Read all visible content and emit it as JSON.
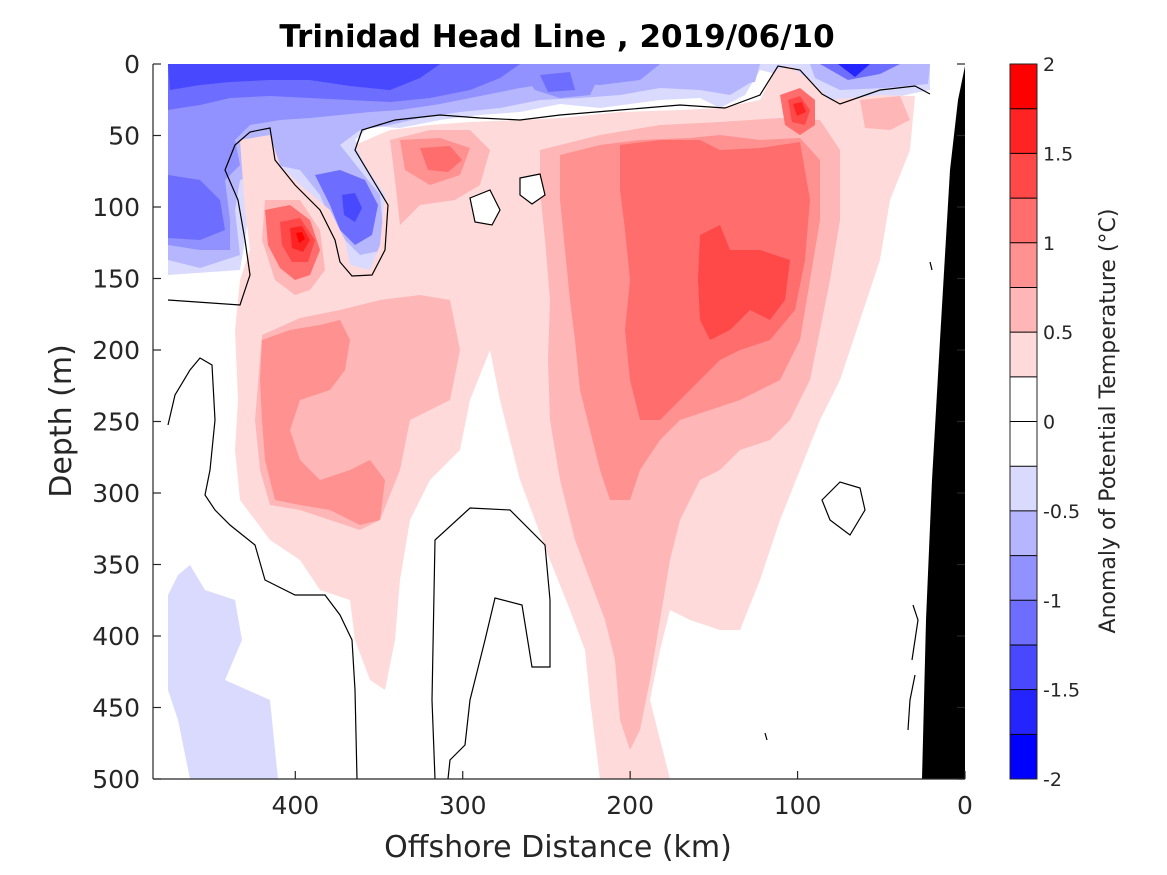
{
  "chart_data": {
    "type": "heatmap",
    "title": "Trinidad Head Line , 2019/06/10",
    "xlabel": "Offshore Distance (km)",
    "ylabel": "Depth (m)",
    "xlim": [
      485,
      0
    ],
    "ylim": [
      0,
      500
    ],
    "x_ticks": [
      "400",
      "300",
      "200",
      "100",
      "0"
    ],
    "x_tick_values": [
      400,
      300,
      200,
      100,
      0
    ],
    "y_ticks": [
      "0",
      "50",
      "100",
      "150",
      "200",
      "250",
      "300",
      "350",
      "400",
      "450",
      "500"
    ],
    "y_tick_values": [
      0,
      50,
      100,
      150,
      200,
      250,
      300,
      350,
      400,
      450,
      500
    ],
    "grid": false,
    "colorbar": {
      "label": "Anomaly of Potential Temperature (°C)",
      "range": [
        -2,
        2
      ],
      "step": 0.25,
      "ticks": [
        "2",
        "1.5",
        "1",
        "0.5",
        "0",
        "-0.5",
        "-1",
        "-1.5",
        "-2"
      ],
      "tick_values": [
        2,
        1.5,
        1,
        0.5,
        0,
        -0.5,
        -1,
        -1.5,
        -2
      ],
      "colors": [
        "#0000ff",
        "#2424ff",
        "#4848ff",
        "#6d6dff",
        "#9191ff",
        "#b6b6ff",
        "#dadaff",
        "#ffffff",
        "#ffffff",
        "#ffdada",
        "#ffb6b6",
        "#ff9191",
        "#ff6d6d",
        "#ff4848",
        "#ff2424",
        "#ff0000"
      ]
    },
    "features": [
      {
        "name": "cold surface layer",
        "x": [
          485,
          320
        ],
        "depth": [
          0,
          150
        ],
        "anomaly": -1.0
      },
      {
        "name": "cold core",
        "x": [
          370,
          370
        ],
        "depth": [
          100,
          100
        ],
        "anomaly": -1.0
      },
      {
        "name": "warm eddy",
        "x": [
          400,
          400
        ],
        "depth": [
          120,
          120
        ],
        "anomaly": 1.75
      },
      {
        "name": "warm core",
        "x": [
          100,
          100
        ],
        "depth": [
          35,
          35
        ],
        "anomaly": 1.5
      },
      {
        "name": "warm tongue",
        "x": [
          220,
          60
        ],
        "depth": [
          50,
          500
        ],
        "anomaly": 0.75
      },
      {
        "name": "deep cold patch",
        "x": [
          485,
          440
        ],
        "depth": [
          350,
          500
        ],
        "anomaly": -0.4
      }
    ],
    "bathymetry": "black shelf wedge near 0 km"
  }
}
